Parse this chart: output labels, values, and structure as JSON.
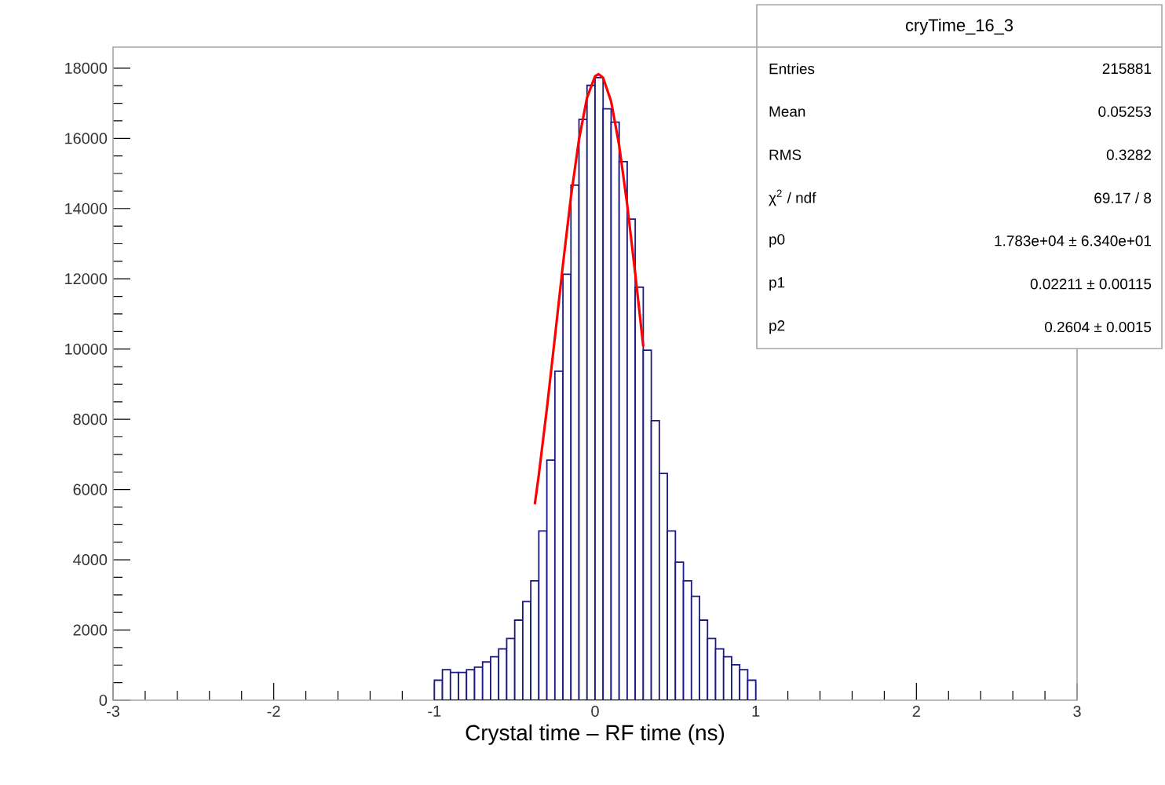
{
  "chart_data": {
    "type": "histogram",
    "xlabel": "Crystal time – RF time (ns)",
    "xlim": [
      -3,
      3
    ],
    "ylim": [
      0,
      18600
    ],
    "xticks": [
      -3,
      -2,
      -1,
      0,
      1,
      2,
      3
    ],
    "yticks": [
      0,
      2000,
      4000,
      6000,
      8000,
      10000,
      12000,
      14000,
      16000,
      18000
    ],
    "grid": false,
    "annotations": [
      "cryTime_16_3",
      "Entries",
      "215881",
      "Mean",
      "0.05253",
      "RMS",
      "0.3282",
      "χ$^{2}$ / ndf",
      "69.17 / 8",
      "p0",
      "1.783e+04 ± 6.340e+01",
      "p1",
      "0.02211 ± 0.00115",
      "p2",
      "0.2604 ± 0.0015"
    ],
    "color": "#1a1a80",
    "bins": [
      -1.0,
      -0.95,
      -0.9,
      -0.85,
      -0.8,
      -0.75,
      -0.7,
      -0.65,
      -0.6,
      -0.55,
      -0.5,
      -0.45,
      -0.4,
      -0.35,
      -0.3,
      -0.25,
      -0.2,
      -0.15,
      -0.1,
      -0.05,
      0.0,
      0.05,
      0.1,
      0.15,
      0.2,
      0.25,
      0.3,
      0.35,
      0.4,
      0.45,
      0.5,
      0.55,
      0.6,
      0.65,
      0.7,
      0.75,
      0.8,
      0.85,
      0.9,
      0.95,
      1.0
    ],
    "values": [
      570,
      870,
      790,
      790,
      870,
      940,
      1090,
      1240,
      1460,
      1760,
      2280,
      2810,
      3400,
      4820,
      6840,
      9370,
      12130,
      14670,
      16540,
      17510,
      17730,
      16840,
      16460,
      15340,
      13700,
      11760,
      9970,
      7960,
      6460,
      4820,
      3930,
      3400,
      2960,
      2280,
      1760,
      1460,
      1240,
      1010,
      870,
      570
    ],
    "series": [
      {
        "type": "line",
        "color": "#ff0000",
        "x": [
          -0.375,
          -0.35,
          -0.3,
          -0.25,
          -0.2,
          -0.15,
          -0.1,
          -0.05,
          0.0,
          0.022,
          0.05,
          0.1,
          0.15,
          0.2,
          0.25,
          0.3
        ],
        "values": [
          5580,
          6420,
          8300,
          10330,
          12400,
          14340,
          15970,
          17160,
          17770,
          17830,
          17730,
          17050,
          15800,
          14110,
          12150,
          10080
        ]
      }
    ]
  }
}
